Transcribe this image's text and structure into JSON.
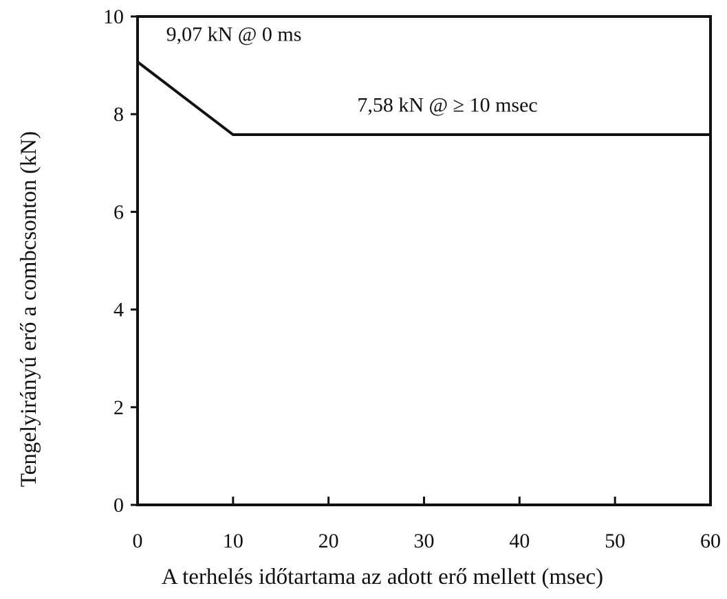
{
  "chart_data": {
    "type": "line",
    "title": "",
    "xlabel": "A terhelés időtartama az adott erő mellett (msec)",
    "ylabel": "Tengelyirányú erő a combcsonton (kN)",
    "xlim": [
      0,
      60
    ],
    "ylim": [
      0,
      10
    ],
    "x_ticks": [
      0,
      10,
      20,
      30,
      40,
      50,
      60
    ],
    "y_ticks": [
      0,
      2,
      4,
      6,
      8,
      10
    ],
    "grid": false,
    "legend": "none",
    "series": [
      {
        "x": [
          0,
          10,
          60
        ],
        "y": [
          9.07,
          7.58,
          7.58
        ]
      }
    ],
    "annotations": [
      {
        "text": "9,07 kN @ 0 ms",
        "x": 3,
        "y": 9.5
      },
      {
        "text": "7,58 kN @ ≥ 10 msec",
        "x": 23,
        "y": 8.05
      }
    ],
    "line_color": "#111111"
  }
}
